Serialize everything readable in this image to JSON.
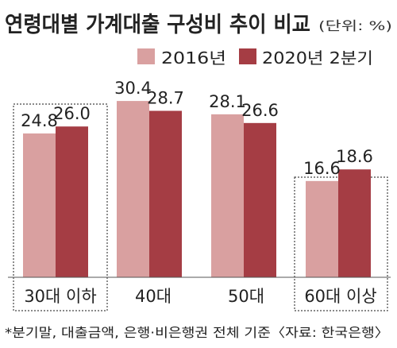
{
  "chart_data": {
    "type": "bar",
    "title": "연령대별 가계대출 구성비 추이 비교",
    "unit_label": "(단위: %)",
    "categories": [
      "30대 이하",
      "40대",
      "50대",
      "60대 이상"
    ],
    "series": [
      {
        "name": "2016년",
        "values": [
          24.8,
          30.4,
          28.1,
          16.6
        ],
        "color": "#d9a0a0"
      },
      {
        "name": "2020년 2분기",
        "values": [
          26.0,
          28.7,
          26.6,
          18.6
        ],
        "color": "#a53d44"
      }
    ],
    "value_labels": [
      [
        "24.8",
        "30.4",
        "28.1",
        "16.6"
      ],
      [
        "26.0",
        "28.7",
        "26.6",
        "18.6"
      ]
    ],
    "highlighted_categories": [
      "30대 이하",
      "60대 이상"
    ],
    "ylim": [
      0,
      34
    ],
    "legend_position": "top-right",
    "grid": false,
    "footnote": "*분기말, 대출금액, 은행·비은행권 전체 기준〈자료: 한국은행〉"
  }
}
